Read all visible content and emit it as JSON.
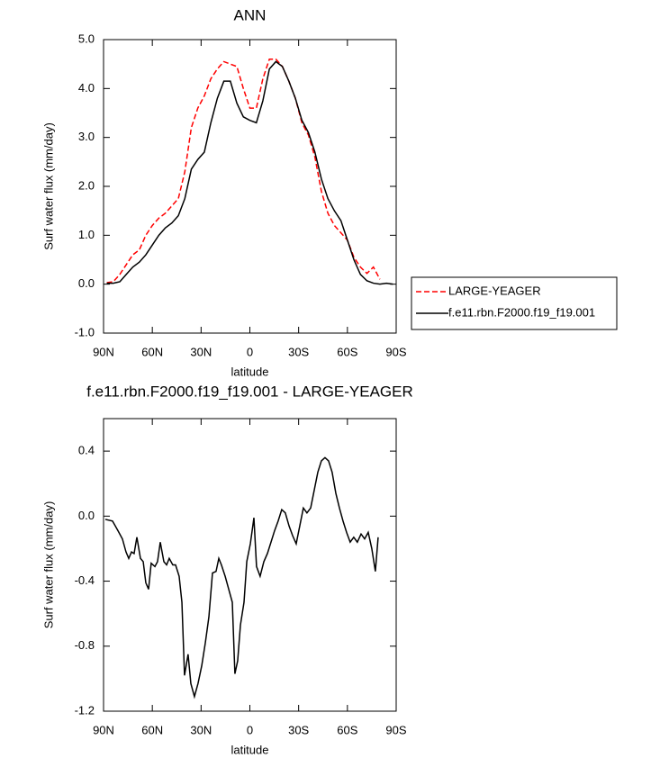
{
  "chart_data": [
    {
      "type": "line",
      "title": "ANN",
      "xlabel": "latitude",
      "ylabel": "Surf water flux (mm/day)",
      "xlim": [
        90,
        -90
      ],
      "xticks": [
        {
          "value": 90,
          "label": "90N"
        },
        {
          "value": 60,
          "label": "60N"
        },
        {
          "value": 30,
          "label": "30N"
        },
        0,
        {
          "value": -30,
          "label": "30S"
        },
        {
          "value": -60,
          "label": "60S"
        },
        {
          "value": -90,
          "label": "90S"
        }
      ],
      "ylim": [
        -1,
        5
      ],
      "yticks": [
        {
          "value": -1,
          "label": "-1.0"
        },
        {
          "value": 0,
          "label": "0.0"
        },
        {
          "value": 1,
          "label": "1.0"
        },
        {
          "value": 2,
          "label": "2.0"
        },
        {
          "value": 3,
          "label": "3.0"
        },
        {
          "value": 4,
          "label": "4.0"
        },
        {
          "value": 5,
          "label": "5.0"
        }
      ],
      "legend_position": "right",
      "x": [
        88,
        84,
        80,
        76,
        72,
        68,
        64,
        60,
        56,
        52,
        48,
        44,
        40,
        36,
        32,
        28,
        24,
        20,
        16,
        12,
        8,
        4,
        0,
        -4,
        -8,
        -12,
        -16,
        -20,
        -24,
        -28,
        -32,
        -36,
        -40,
        -44,
        -48,
        -52,
        -56,
        -60,
        -64,
        -68,
        -72,
        -76,
        -80,
        -84,
        -88
      ],
      "series": [
        {
          "name": "LARGE-YEAGER",
          "color": "#ff0000",
          "dashed": true,
          "values": [
            0.03,
            0.05,
            0.2,
            0.4,
            0.6,
            0.7,
            1.0,
            1.2,
            1.35,
            1.45,
            1.6,
            1.75,
            2.3,
            3.2,
            3.6,
            3.85,
            4.2,
            4.4,
            4.55,
            4.5,
            4.45,
            4.0,
            3.6,
            3.6,
            4.2,
            4.6,
            4.6,
            4.45,
            4.15,
            3.8,
            3.3,
            3.05,
            2.6,
            1.9,
            1.45,
            1.2,
            1.05,
            0.9,
            0.55,
            0.35,
            0.22,
            0.35,
            0.1,
            null,
            null
          ]
        },
        {
          "name": "f.e11.rbn.F2000.f19_f19.001",
          "color": "#000000",
          "dashed": false,
          "values": [
            0.02,
            0.02,
            0.05,
            0.2,
            0.35,
            0.45,
            0.6,
            0.8,
            1.0,
            1.15,
            1.25,
            1.4,
            1.75,
            2.35,
            2.55,
            2.7,
            3.3,
            3.8,
            4.15,
            4.15,
            3.7,
            3.42,
            3.35,
            3.3,
            3.75,
            4.4,
            4.55,
            4.45,
            4.15,
            3.8,
            3.35,
            3.1,
            2.7,
            2.15,
            1.75,
            1.5,
            1.3,
            0.9,
            0.5,
            0.2,
            0.07,
            0.02,
            0.0,
            0.02,
            0.0
          ]
        }
      ]
    },
    {
      "type": "line",
      "title": "f.e11.rbn.F2000.f19_f19.001 - LARGE-YEAGER",
      "xlabel": "latitude",
      "ylabel": "Surf water flux (mm/day)",
      "xlim": [
        90,
        -90
      ],
      "xticks": [
        {
          "value": 90,
          "label": "90N"
        },
        {
          "value": 60,
          "label": "60N"
        },
        {
          "value": 30,
          "label": "30N"
        },
        0,
        {
          "value": -30,
          "label": "30S"
        },
        {
          "value": -60,
          "label": "60S"
        },
        {
          "value": -90,
          "label": "90S"
        }
      ],
      "ylim": [
        -1.2,
        0.6
      ],
      "yticks": [
        -1.2,
        -0.8,
        -0.4,
        {
          "value": 0,
          "label": "0.0"
        },
        0.4
      ],
      "x": [
        88.9,
        84.5,
        81.1,
        78.4,
        76.2,
        74.5,
        72.8,
        71.2,
        69.5,
        67.3,
        65.6,
        64.0,
        62.3,
        60.7,
        58.4,
        56.8,
        55.1,
        52.9,
        51.2,
        49.6,
        47.4,
        45.7,
        43.5,
        41.8,
        40.2,
        38.0,
        36.3,
        34.1,
        31.9,
        29.6,
        27.4,
        25.2,
        23.0,
        20.8,
        19.1,
        17.5,
        15.2,
        13.0,
        10.8,
        9.2,
        7.5,
        5.8,
        3.6,
        1.9,
        -0.3,
        -2.5,
        -4.1,
        -6.3,
        -8.6,
        -10.8,
        -13.0,
        -15.2,
        -17.4,
        -19.6,
        -21.8,
        -24.1,
        -26.3,
        -28.5,
        -30.7,
        -32.9,
        -35.1,
        -37.4,
        -39.6,
        -41.8,
        -44.0,
        -46.2,
        -48.4,
        -50.6,
        -52.9,
        -55.1,
        -57.3,
        -59.5,
        -61.7,
        -63.9,
        -66.1,
        -68.4,
        -70.6,
        -72.8,
        -75.0,
        -77.2,
        -78.9
      ],
      "series": [
        {
          "color": "#000000",
          "dashed": false,
          "values": [
            -0.02,
            -0.03,
            -0.09,
            -0.14,
            -0.22,
            -0.26,
            -0.22,
            -0.23,
            -0.13,
            -0.26,
            -0.28,
            -0.41,
            -0.45,
            -0.29,
            -0.31,
            -0.28,
            -0.16,
            -0.28,
            -0.3,
            -0.26,
            -0.3,
            -0.3,
            -0.37,
            -0.53,
            -0.98,
            -0.85,
            -1.03,
            -1.11,
            -1.03,
            -0.92,
            -0.78,
            -0.62,
            -0.35,
            -0.34,
            -0.26,
            -0.3,
            -0.37,
            -0.45,
            -0.53,
            -0.97,
            -0.89,
            -0.67,
            -0.53,
            -0.28,
            -0.17,
            -0.01,
            -0.31,
            -0.37,
            -0.28,
            -0.23,
            -0.16,
            -0.09,
            -0.03,
            0.04,
            0.02,
            -0.06,
            -0.12,
            -0.17,
            -0.06,
            0.05,
            0.02,
            0.05,
            0.16,
            0.27,
            0.34,
            0.36,
            0.34,
            0.27,
            0.14,
            0.05,
            -0.03,
            -0.1,
            -0.16,
            -0.13,
            -0.16,
            -0.11,
            -0.14,
            -0.1,
            -0.2,
            -0.34,
            -0.13
          ]
        }
      ]
    }
  ]
}
